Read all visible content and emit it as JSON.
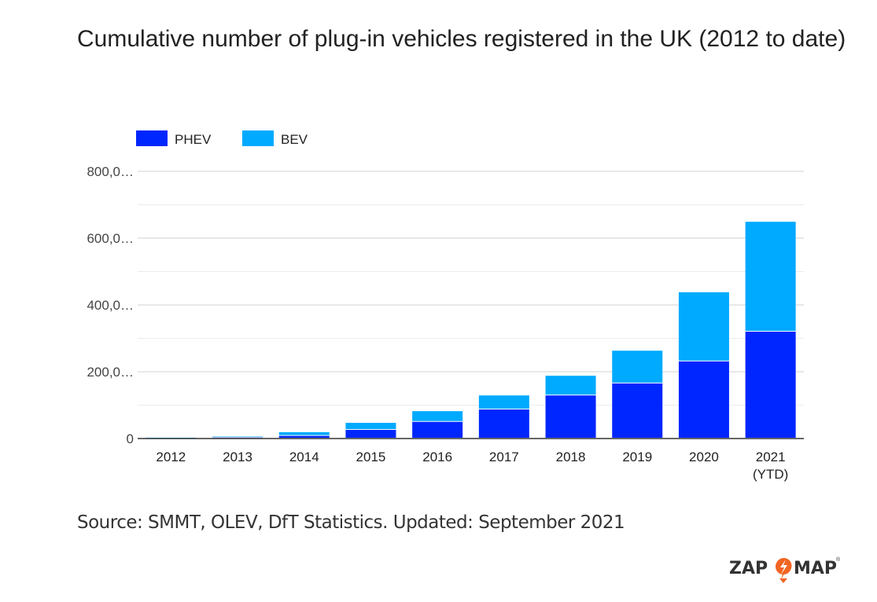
{
  "chart_data": {
    "type": "bar",
    "stacked": true,
    "title": "Cumulative number of plug-in vehicles registered in the UK (2012 to date)",
    "categories": [
      "2012",
      "2013",
      "2014",
      "2015",
      "2016",
      "2017",
      "2018",
      "2019",
      "2020",
      "2021\n(YTD)"
    ],
    "series": [
      {
        "name": "PHEV",
        "color": "#0026ff",
        "values": [
          1000,
          3000,
          8000,
          26000,
          50000,
          87000,
          129000,
          165000,
          231000,
          320000
        ]
      },
      {
        "name": "BEV",
        "color": "#00aaff",
        "values": [
          1500,
          3500,
          11000,
          21000,
          32000,
          42000,
          59000,
          98000,
          207000,
          329000
        ]
      }
    ],
    "yticks": [
      "0",
      "200,0…",
      "400,0…",
      "600,0…",
      "800,0…"
    ],
    "ylim": [
      0,
      800000
    ],
    "grid": true,
    "legend": "top-left"
  },
  "source": "Source: SMMT, OLEV, DfT Statistics. Updated: September 2021",
  "logo": {
    "text_left": "ZAP",
    "text_right": "MAP",
    "accent": "#f26522"
  }
}
